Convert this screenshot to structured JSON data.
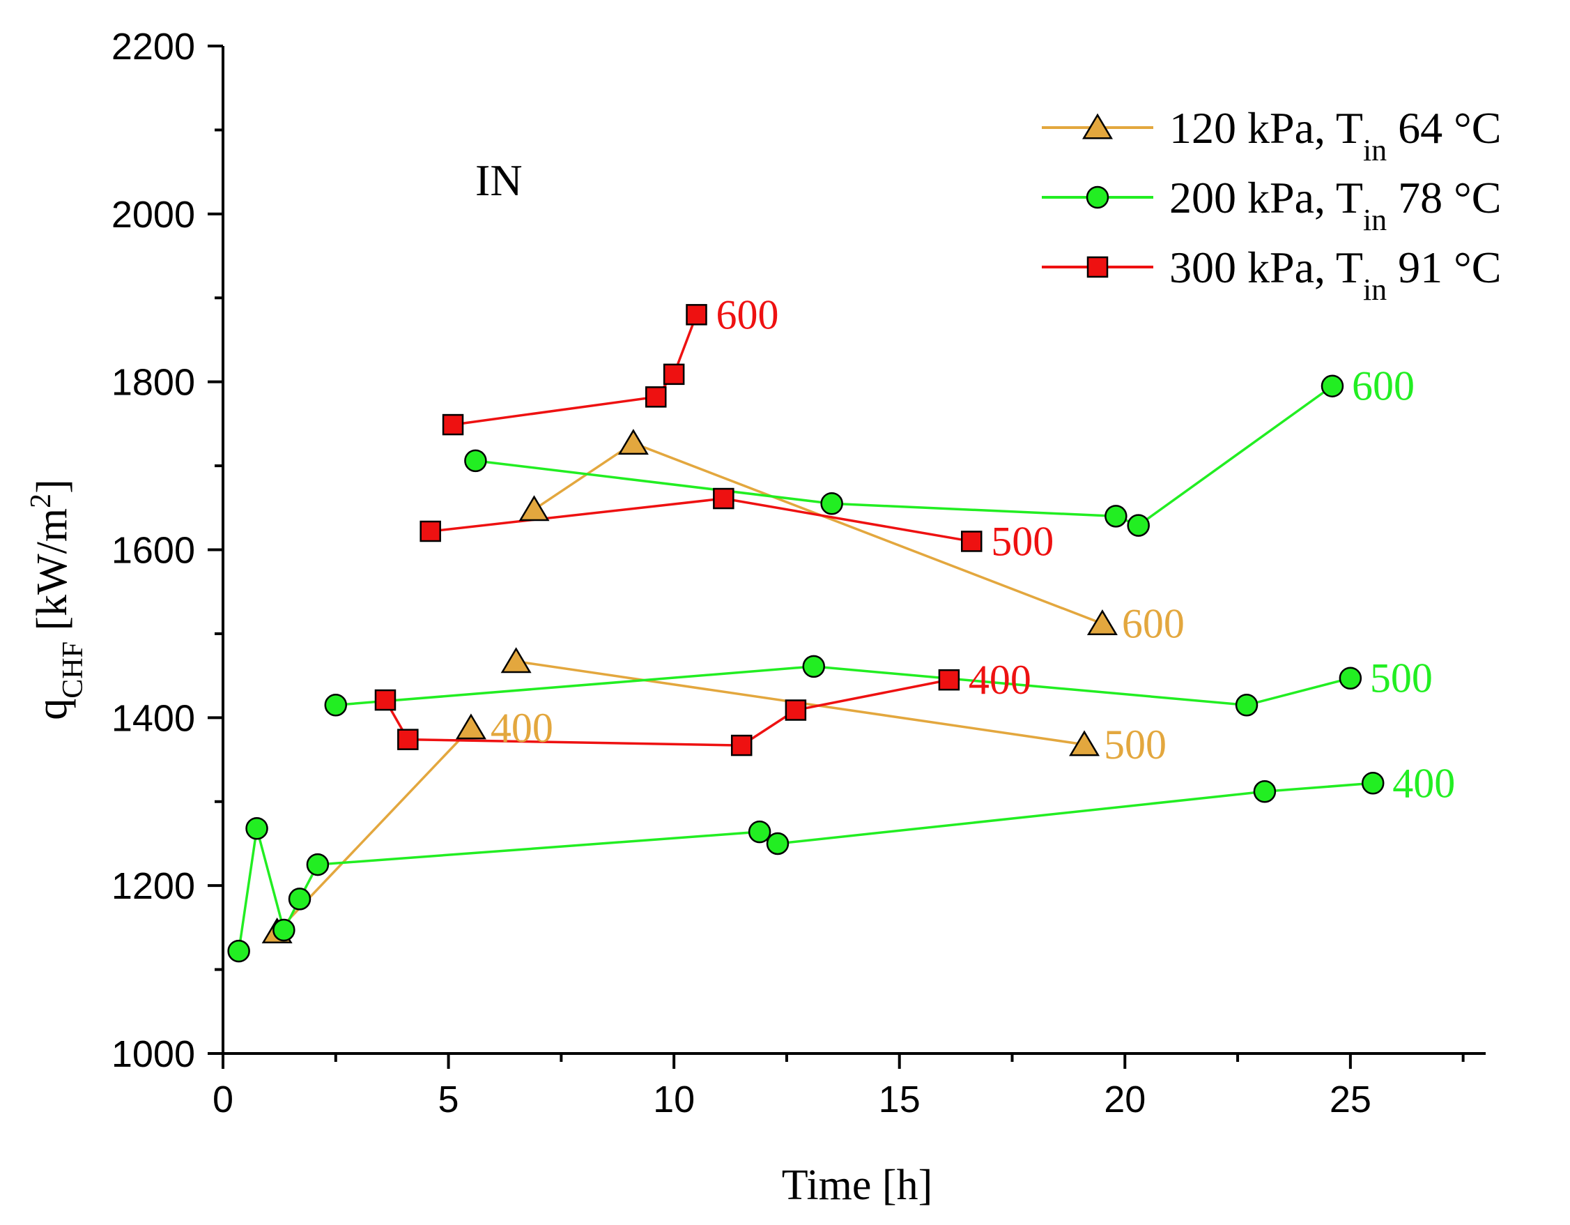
{
  "chart_data": {
    "type": "line",
    "title": "",
    "annotation": "IN",
    "xlabel": "Time [h]",
    "ylabel": {
      "main": "q",
      "sub": "CHF",
      "unit_pre": " [kW/m",
      "unit_sup": "2",
      "unit_post": "]"
    },
    "xlim": [
      0,
      28
    ],
    "ylim": [
      1000,
      2200
    ],
    "xticks": [
      0,
      5,
      10,
      15,
      20,
      25
    ],
    "xtick_labels": [
      "0",
      "5",
      "10",
      "15",
      "20",
      "25"
    ],
    "yticks": [
      1000,
      1200,
      1400,
      1600,
      1800,
      2000,
      2200
    ],
    "ytick_labels": [
      "1000",
      "1200",
      "1400",
      "1600",
      "1800",
      "2000",
      "2200"
    ],
    "legend_position": "top-right",
    "series": [
      {
        "name": "120 kPa",
        "legend": {
          "main": "120 kPa, T",
          "sub": "in",
          "post": " 64 °C"
        },
        "color": "#E3A73E",
        "marker": "triangle",
        "segments": [
          {
            "label": "400",
            "points": [
              [
                1.2,
                1145
              ],
              [
                5.5,
                1388
              ]
            ]
          },
          {
            "label": "",
            "points": [
              [
                6.9,
                1648
              ],
              [
                9.1,
                1727
              ],
              [
                19.5,
                1512
              ]
            ]
          },
          {
            "label": "",
            "points": [
              [
                6.5,
                1467
              ],
              [
                19.1,
                1368
              ]
            ]
          }
        ],
        "point_labels": [
          {
            "text": "400",
            "x": 5.5,
            "y": 1388
          },
          {
            "text": "600",
            "x": 19.5,
            "y": 1512
          },
          {
            "text": "500",
            "x": 19.1,
            "y": 1368
          }
        ]
      },
      {
        "name": "200 kPa",
        "legend": {
          "main": "200 kPa, T",
          "sub": "in",
          "post": " 78 °C"
        },
        "color": "#22EE22",
        "marker": "circle",
        "segments": [
          {
            "label": "",
            "points": [
              [
                0.35,
                1122
              ],
              [
                0.75,
                1268
              ],
              [
                1.35,
                1147
              ],
              [
                1.7,
                1184
              ],
              [
                2.1,
                1225
              ],
              [
                11.9,
                1264
              ],
              [
                12.3,
                1250
              ],
              [
                23.1,
                1312
              ],
              [
                25.5,
                1322
              ]
            ]
          },
          {
            "label": "",
            "points": [
              [
                2.5,
                1415
              ],
              [
                13.1,
                1461
              ],
              [
                22.7,
                1415
              ],
              [
                25.0,
                1447
              ]
            ]
          },
          {
            "label": "",
            "points": [
              [
                5.6,
                1706
              ],
              [
                13.5,
                1655
              ],
              [
                19.8,
                1640
              ],
              [
                20.3,
                1629
              ],
              [
                24.6,
                1795
              ]
            ]
          }
        ],
        "point_labels": [
          {
            "text": "400",
            "x": 25.5,
            "y": 1322
          },
          {
            "text": "500",
            "x": 25.0,
            "y": 1447
          },
          {
            "text": "600",
            "x": 24.6,
            "y": 1795
          }
        ]
      },
      {
        "name": "300 kPa",
        "legend": {
          "main": "300 kPa, T",
          "sub": "in",
          "post": " 91 °C"
        },
        "color": "#EE1111",
        "marker": "square",
        "segments": [
          {
            "label": "",
            "points": [
              [
                3.6,
                1421
              ],
              [
                4.1,
                1374
              ],
              [
                11.5,
                1367
              ],
              [
                12.7,
                1409
              ],
              [
                16.1,
                1445
              ]
            ]
          },
          {
            "label": "",
            "points": [
              [
                4.6,
                1622
              ],
              [
                11.1,
                1661
              ],
              [
                16.6,
                1610
              ]
            ]
          },
          {
            "label": "",
            "points": [
              [
                5.1,
                1749
              ],
              [
                9.6,
                1782
              ],
              [
                10.0,
                1809
              ],
              [
                10.5,
                1880
              ]
            ]
          }
        ],
        "point_labels": [
          {
            "text": "400",
            "x": 16.1,
            "y": 1445
          },
          {
            "text": "500",
            "x": 16.6,
            "y": 1610
          },
          {
            "text": "600",
            "x": 10.5,
            "y": 1880
          }
        ]
      }
    ]
  }
}
